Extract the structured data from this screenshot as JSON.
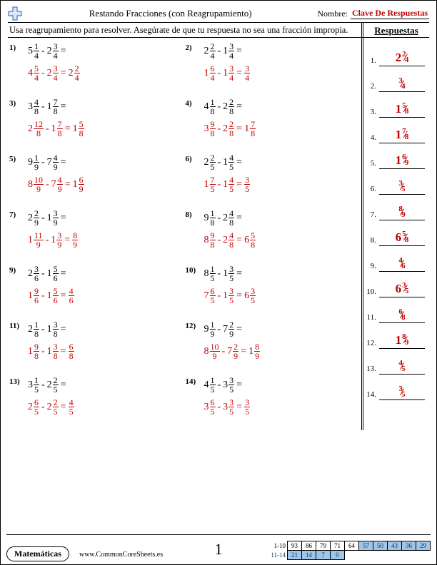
{
  "header": {
    "title": "Restando Fracciones (con Reagrupamiento)",
    "name_label": "Nombre:",
    "name_value": "Clave De Respuestas",
    "instructions": "Usa reagrupamiento para resolver. Asegúrate de que tu respuesta no sea una fracción impropia.",
    "answers_header": "Respuestas"
  },
  "colors": {
    "answer_red": "#c00000"
  },
  "problems": [
    {
      "n": "1)",
      "q": {
        "a": {
          "w": "5",
          "n": "1",
          "d": "4"
        },
        "b": {
          "w": "2",
          "n": "3",
          "d": "4"
        }
      },
      "s": {
        "a": {
          "w": "4",
          "n": "5",
          "d": "4"
        },
        "b": {
          "w": "2",
          "n": "3",
          "d": "4"
        },
        "r": {
          "w": "2",
          "n": "2",
          "d": "4"
        }
      }
    },
    {
      "n": "2)",
      "q": {
        "a": {
          "w": "2",
          "n": "2",
          "d": "4"
        },
        "b": {
          "w": "1",
          "n": "3",
          "d": "4"
        }
      },
      "s": {
        "a": {
          "w": "1",
          "n": "6",
          "d": "4"
        },
        "b": {
          "w": "1",
          "n": "3",
          "d": "4"
        },
        "r": {
          "w": "",
          "n": "3",
          "d": "4"
        }
      }
    },
    {
      "n": "3)",
      "q": {
        "a": {
          "w": "3",
          "n": "4",
          "d": "8"
        },
        "b": {
          "w": "1",
          "n": "7",
          "d": "8"
        }
      },
      "s": {
        "a": {
          "w": "2",
          "n": "12",
          "d": "8"
        },
        "b": {
          "w": "1",
          "n": "7",
          "d": "8"
        },
        "r": {
          "w": "1",
          "n": "5",
          "d": "8"
        }
      }
    },
    {
      "n": "4)",
      "q": {
        "a": {
          "w": "4",
          "n": "1",
          "d": "8"
        },
        "b": {
          "w": "2",
          "n": "2",
          "d": "8"
        }
      },
      "s": {
        "a": {
          "w": "3",
          "n": "9",
          "d": "8"
        },
        "b": {
          "w": "2",
          "n": "2",
          "d": "8"
        },
        "r": {
          "w": "1",
          "n": "7",
          "d": "8"
        }
      }
    },
    {
      "n": "5)",
      "q": {
        "a": {
          "w": "9",
          "n": "1",
          "d": "9"
        },
        "b": {
          "w": "7",
          "n": "4",
          "d": "9"
        }
      },
      "s": {
        "a": {
          "w": "8",
          "n": "10",
          "d": "9"
        },
        "b": {
          "w": "7",
          "n": "4",
          "d": "9"
        },
        "r": {
          "w": "1",
          "n": "6",
          "d": "9"
        }
      }
    },
    {
      "n": "6)",
      "q": {
        "a": {
          "w": "2",
          "n": "2",
          "d": "5"
        },
        "b": {
          "w": "1",
          "n": "4",
          "d": "5"
        }
      },
      "s": {
        "a": {
          "w": "1",
          "n": "7",
          "d": "5"
        },
        "b": {
          "w": "1",
          "n": "4",
          "d": "5"
        },
        "r": {
          "w": "",
          "n": "3",
          "d": "5"
        }
      }
    },
    {
      "n": "7)",
      "q": {
        "a": {
          "w": "2",
          "n": "2",
          "d": "9"
        },
        "b": {
          "w": "1",
          "n": "3",
          "d": "9"
        }
      },
      "s": {
        "a": {
          "w": "1",
          "n": "11",
          "d": "9"
        },
        "b": {
          "w": "1",
          "n": "3",
          "d": "9"
        },
        "r": {
          "w": "",
          "n": "8",
          "d": "9"
        }
      }
    },
    {
      "n": "8)",
      "q": {
        "a": {
          "w": "9",
          "n": "1",
          "d": "8"
        },
        "b": {
          "w": "2",
          "n": "4",
          "d": "8"
        }
      },
      "s": {
        "a": {
          "w": "8",
          "n": "9",
          "d": "8"
        },
        "b": {
          "w": "2",
          "n": "4",
          "d": "8"
        },
        "r": {
          "w": "6",
          "n": "5",
          "d": "8"
        }
      }
    },
    {
      "n": "9)",
      "q": {
        "a": {
          "w": "2",
          "n": "3",
          "d": "6"
        },
        "b": {
          "w": "1",
          "n": "5",
          "d": "6"
        }
      },
      "s": {
        "a": {
          "w": "1",
          "n": "9",
          "d": "6"
        },
        "b": {
          "w": "1",
          "n": "5",
          "d": "6"
        },
        "r": {
          "w": "",
          "n": "4",
          "d": "6"
        }
      }
    },
    {
      "n": "10)",
      "q": {
        "a": {
          "w": "8",
          "n": "1",
          "d": "5"
        },
        "b": {
          "w": "1",
          "n": "3",
          "d": "5"
        }
      },
      "s": {
        "a": {
          "w": "7",
          "n": "6",
          "d": "5"
        },
        "b": {
          "w": "1",
          "n": "3",
          "d": "5"
        },
        "r": {
          "w": "6",
          "n": "3",
          "d": "5"
        }
      }
    },
    {
      "n": "11)",
      "q": {
        "a": {
          "w": "2",
          "n": "1",
          "d": "8"
        },
        "b": {
          "w": "1",
          "n": "3",
          "d": "8"
        }
      },
      "s": {
        "a": {
          "w": "1",
          "n": "9",
          "d": "8"
        },
        "b": {
          "w": "1",
          "n": "3",
          "d": "8"
        },
        "r": {
          "w": "",
          "n": "6",
          "d": "8"
        }
      }
    },
    {
      "n": "12)",
      "q": {
        "a": {
          "w": "9",
          "n": "1",
          "d": "9"
        },
        "b": {
          "w": "7",
          "n": "2",
          "d": "9"
        }
      },
      "s": {
        "a": {
          "w": "8",
          "n": "10",
          "d": "9"
        },
        "b": {
          "w": "7",
          "n": "2",
          "d": "9"
        },
        "r": {
          "w": "1",
          "n": "8",
          "d": "9"
        }
      }
    },
    {
      "n": "13)",
      "q": {
        "a": {
          "w": "3",
          "n": "1",
          "d": "5"
        },
        "b": {
          "w": "2",
          "n": "2",
          "d": "5"
        }
      },
      "s": {
        "a": {
          "w": "2",
          "n": "6",
          "d": "5"
        },
        "b": {
          "w": "2",
          "n": "2",
          "d": "5"
        },
        "r": {
          "w": "",
          "n": "4",
          "d": "5"
        }
      }
    },
    {
      "n": "14)",
      "q": {
        "a": {
          "w": "4",
          "n": "1",
          "d": "5"
        },
        "b": {
          "w": "3",
          "n": "3",
          "d": "5"
        }
      },
      "s": {
        "a": {
          "w": "3",
          "n": "6",
          "d": "5"
        },
        "b": {
          "w": "3",
          "n": "3",
          "d": "5"
        },
        "r": {
          "w": "",
          "n": "3",
          "d": "5"
        }
      }
    }
  ],
  "answers": [
    {
      "i": "1.",
      "w": "2",
      "n": "2",
      "d": "4"
    },
    {
      "i": "2.",
      "w": "",
      "n": "3",
      "d": "4"
    },
    {
      "i": "3.",
      "w": "1",
      "n": "5",
      "d": "8"
    },
    {
      "i": "4.",
      "w": "1",
      "n": "7",
      "d": "8"
    },
    {
      "i": "5.",
      "w": "1",
      "n": "6",
      "d": "9"
    },
    {
      "i": "6.",
      "w": "",
      "n": "3",
      "d": "5"
    },
    {
      "i": "7.",
      "w": "",
      "n": "8",
      "d": "9"
    },
    {
      "i": "8.",
      "w": "6",
      "n": "5",
      "d": "8"
    },
    {
      "i": "9.",
      "w": "",
      "n": "4",
      "d": "6"
    },
    {
      "i": "10.",
      "w": "6",
      "n": "3",
      "d": "5"
    },
    {
      "i": "11.",
      "w": "",
      "n": "6",
      "d": "8"
    },
    {
      "i": "12.",
      "w": "1",
      "n": "8",
      "d": "9"
    },
    {
      "i": "13.",
      "w": "",
      "n": "4",
      "d": "5"
    },
    {
      "i": "14.",
      "w": "",
      "n": "3",
      "d": "5"
    }
  ],
  "footer": {
    "brand": "Matemáticas",
    "url": "www.CommonCoreSheets.es",
    "page": "1",
    "score_rows": {
      "r1_label": "1-10",
      "r1": [
        "93",
        "86",
        "79",
        "71",
        "64",
        "57",
        "50",
        "43",
        "36",
        "29"
      ],
      "r2_label": "11-14",
      "r2": [
        "21",
        "14",
        "7",
        "0"
      ]
    }
  }
}
